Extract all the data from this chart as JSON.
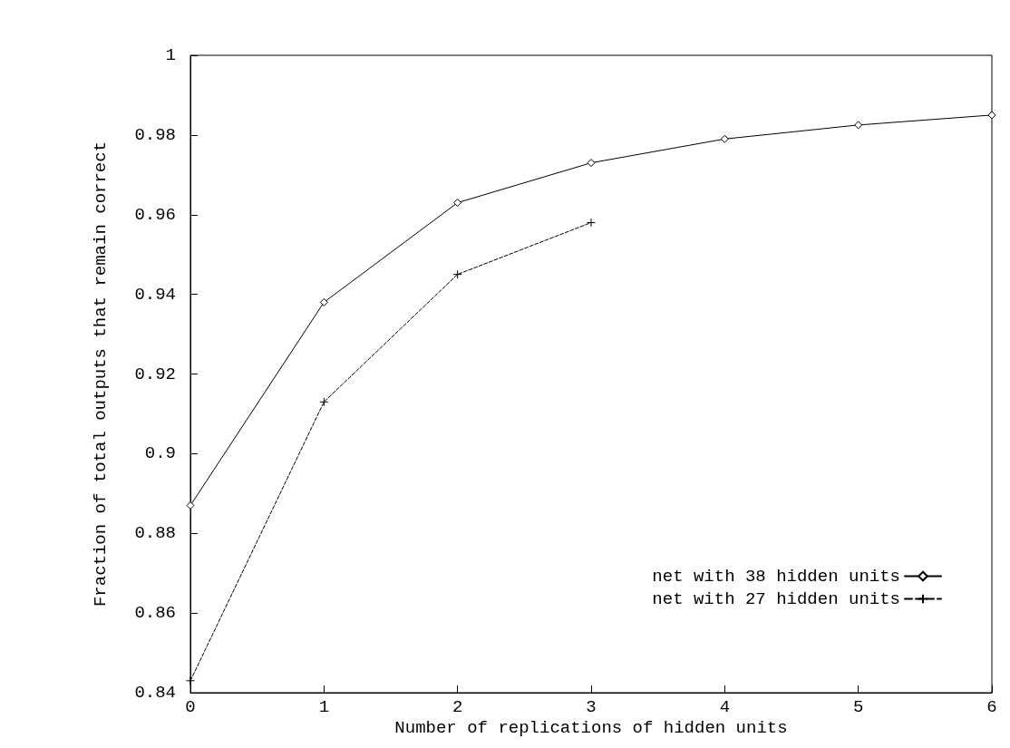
{
  "chart_data": {
    "type": "line",
    "xlabel": "Number of replications of hidden units",
    "ylabel": "Fraction of total outputs that remain correct",
    "xlim": [
      0,
      6
    ],
    "xticks": [
      0,
      1,
      2,
      3,
      4,
      5,
      6
    ],
    "ylim": [
      0.84,
      1
    ],
    "yticks": [
      0.84,
      0.86,
      0.88,
      0.9,
      0.92,
      0.94,
      0.96,
      0.98,
      1
    ],
    "series": [
      {
        "name": "net with 38 hidden units",
        "color": "#000000",
        "marker": "diamond",
        "line_style": "solid",
        "x": [
          0,
          1,
          2,
          3,
          4,
          5,
          6
        ],
        "values": [
          0.887,
          0.938,
          0.963,
          0.973,
          0.979,
          0.9825,
          0.985
        ]
      },
      {
        "name": "net with 27 hidden units",
        "color": "#000000",
        "marker": "cross",
        "line_style": "dashed",
        "x": [
          0,
          1,
          2,
          3
        ],
        "values": [
          0.843,
          0.913,
          0.945,
          0.958
        ]
      }
    ],
    "legend": "bottom right",
    "grid": false
  }
}
